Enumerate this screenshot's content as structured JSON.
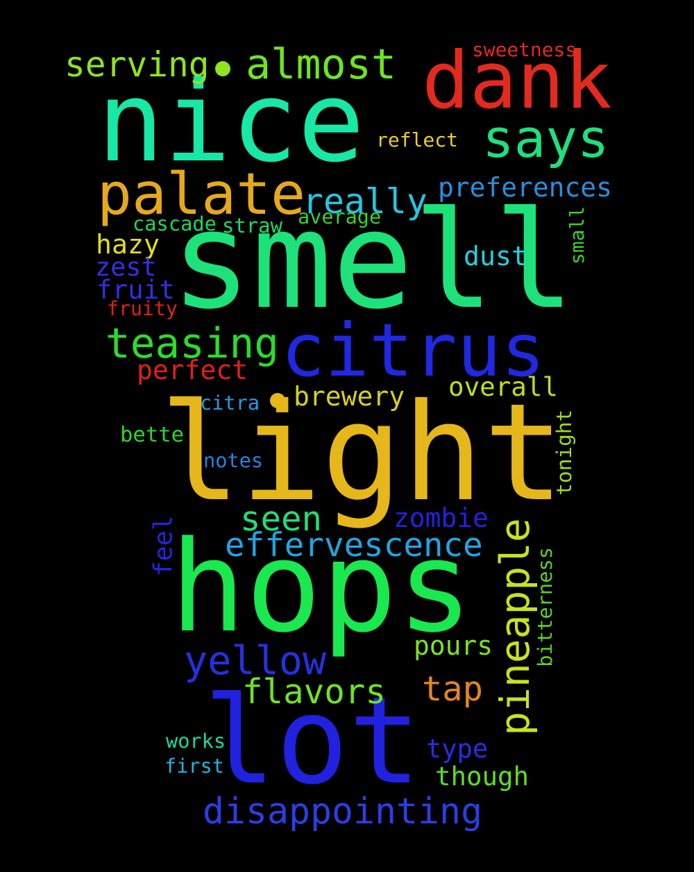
{
  "background": "#000000",
  "words": [
    {
      "text": "smell",
      "color": "#1de27a"
    },
    {
      "text": "light",
      "color": "#e5b71a"
    },
    {
      "text": "nice",
      "color": "#17e8a6"
    },
    {
      "text": "hops",
      "color": "#19e84f"
    },
    {
      "text": "lot",
      "color": "#2121e0"
    },
    {
      "text": "dank",
      "color": "#e32a1e"
    },
    {
      "text": "citrus",
      "color": "#2028e0"
    },
    {
      "text": "palate",
      "color": "#e5a91e"
    },
    {
      "text": "says",
      "color": "#1ee07c"
    },
    {
      "text": "pineapple",
      "color": "#c9e21d"
    },
    {
      "text": "teasing",
      "color": "#2bdc2b"
    },
    {
      "text": "almost",
      "color": "#6ee51e"
    },
    {
      "text": "serving",
      "color": "#8ee41e"
    },
    {
      "text": "yellow",
      "color": "#2431df"
    },
    {
      "text": "disappointing",
      "color": "#2b3ee6"
    },
    {
      "text": "really",
      "color": "#23c7e2"
    },
    {
      "text": "effervescence",
      "color": "#1fa6e1"
    },
    {
      "text": "flavors",
      "color": "#6ee51e"
    },
    {
      "text": "seen",
      "color": "#1ee07a"
    },
    {
      "text": "tap",
      "color": "#e5851f"
    },
    {
      "text": "preferences",
      "color": "#2391e0"
    },
    {
      "text": "though",
      "color": "#5be01e"
    },
    {
      "text": "overall",
      "color": "#b8e21d"
    },
    {
      "text": "brewery",
      "color": "#d8d21c"
    },
    {
      "text": "pours",
      "color": "#7ee51e"
    },
    {
      "text": "zombie",
      "color": "#2521df"
    },
    {
      "text": "dust",
      "color": "#20d2df"
    },
    {
      "text": "perfect",
      "color": "#e02020"
    },
    {
      "text": "type",
      "color": "#2b2ce6"
    },
    {
      "text": "fruit",
      "color": "#3130e0"
    },
    {
      "text": "hazy",
      "color": "#e5df1e"
    },
    {
      "text": "zest",
      "color": "#2f32e3"
    },
    {
      "text": "feel",
      "color": "#2723e0"
    },
    {
      "text": "sweetness",
      "color": "#e32a1e"
    },
    {
      "text": "reflect",
      "color": "#e8d21e"
    },
    {
      "text": "cascade",
      "color": "#1ed85f"
    },
    {
      "text": "straw",
      "color": "#1ed86a"
    },
    {
      "text": "average",
      "color": "#3ad22a"
    },
    {
      "text": "fruity",
      "color": "#e02020"
    },
    {
      "text": "citra",
      "color": "#209ee0"
    },
    {
      "text": "bette",
      "color": "#2ad82a"
    },
    {
      "text": "notes",
      "color": "#2184e0"
    },
    {
      "text": "tonight",
      "color": "#9cdc1c"
    },
    {
      "text": "bitterness",
      "color": "#5ed21c"
    },
    {
      "text": "small",
      "color": "#3ad22a"
    },
    {
      "text": "works",
      "color": "#1ed8a0"
    },
    {
      "text": "first",
      "color": "#20b5e0"
    }
  ],
  "dots": [
    {
      "color": "#8ee41e"
    },
    {
      "color": "#e5b71a"
    }
  ]
}
